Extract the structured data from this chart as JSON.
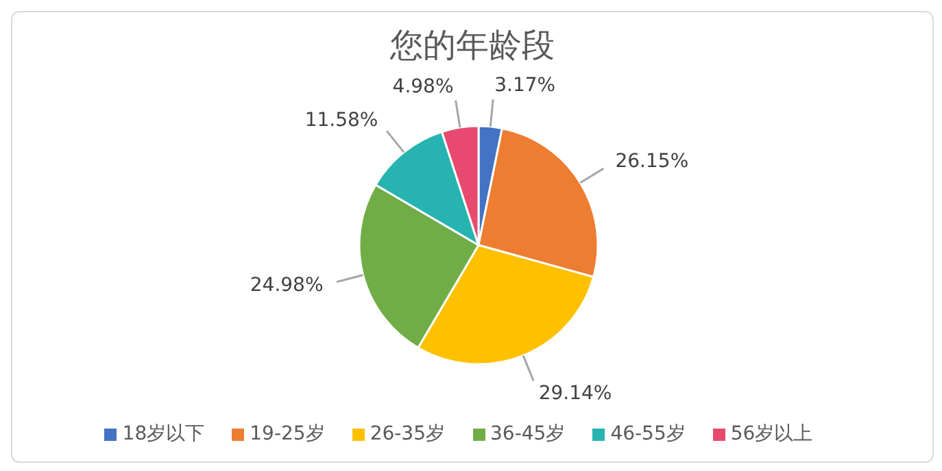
{
  "chart_data": {
    "type": "pie",
    "title": "您的年龄段",
    "categories": [
      "18岁以下",
      "19-25岁",
      "26-35岁",
      "36-45岁",
      "46-55岁",
      "56岁以上"
    ],
    "values": [
      3.17,
      26.15,
      29.14,
      24.98,
      11.58,
      4.98
    ],
    "value_labels": [
      "3.17%",
      "26.15%",
      "29.14%",
      "24.98%",
      "11.58%",
      "4.98%"
    ],
    "colors": [
      "#4472c4",
      "#ed7d31",
      "#ffc000",
      "#70ad47",
      "#27b3b0",
      "#e84a6f"
    ],
    "legend": "bottom"
  }
}
